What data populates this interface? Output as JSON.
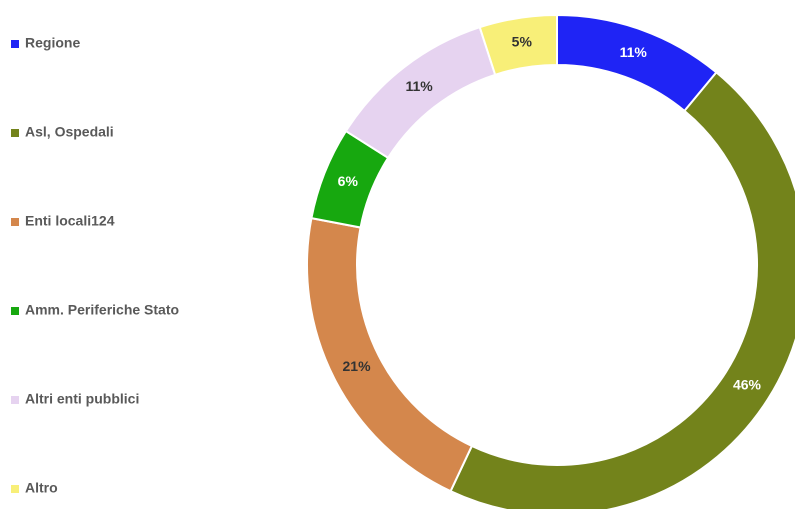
{
  "chart_data": {
    "type": "donut",
    "categories": [
      "Regione",
      "Asl, Ospedali",
      "Enti locali124",
      "Amm. Periferiche Stato",
      "Altri enti pubblici",
      "Altro"
    ],
    "values": [
      11,
      46,
      21,
      6,
      11,
      5
    ],
    "value_labels": [
      "11%",
      "46%",
      "21%",
      "6%",
      "11%",
      "5%"
    ],
    "colors": [
      "#1f24f5",
      "#73831b",
      "#d4874c",
      "#17a80f",
      "#e6d3f0",
      "#f8ef78"
    ],
    "legend": "left"
  }
}
